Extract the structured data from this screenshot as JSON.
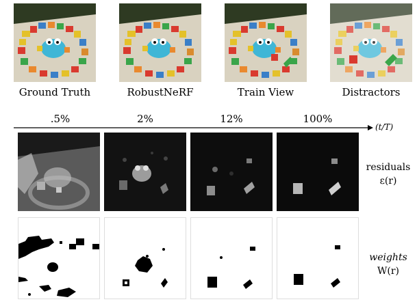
{
  "top_row": {
    "captions": [
      "Ground Truth",
      "RobustNeRF",
      "Train View",
      "Distractors"
    ]
  },
  "timeline": {
    "ticks": [
      ".5%",
      "2%",
      "12%",
      "100%"
    ],
    "axis_label": "(t/T)"
  },
  "rows": {
    "residuals_label": "residuals",
    "residuals_symbol": "ε(r)",
    "weights_label": "weights",
    "weights_symbol": "W(r)"
  }
}
